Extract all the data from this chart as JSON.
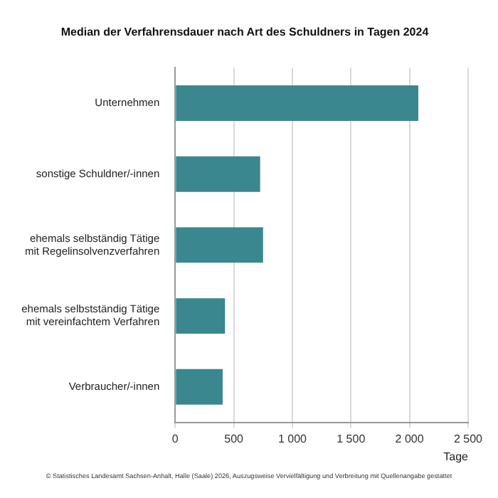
{
  "chart_data": {
    "type": "bar",
    "orientation": "horizontal",
    "title": "Median der Verfahrensdauer nach Art des Schuldners in Tagen 2024",
    "xlabel": "Tage",
    "categories": [
      "Unternehmen",
      "sonstige Schuldner/-innen",
      "ehemals selbständig Tätige mit Regelinsolvenzverfahren",
      "ehemals selbstständig Tätige mit vereinfachtem Verfahren",
      "Verbraucher/-innen"
    ],
    "values": [
      2075,
      725,
      750,
      425,
      405
    ],
    "color": "#3a878f",
    "xlim": [
      0,
      2500
    ],
    "xticks": [
      0,
      500,
      {
        "value": 1000,
        "label": "1 000"
      },
      {
        "value": 1500,
        "label": "1 500"
      },
      {
        "value": 2000,
        "label": "2 000"
      },
      {
        "value": 2500,
        "label": "2 500"
      }
    ],
    "grid": "x",
    "legend": false,
    "annotations": [
      "© Statistisches Landesamt Sachsen-Anhalt, Halle (Saale) 2026, Auszugsweise Vervielfältigung und Verbreitung mit Quellenangabe gestattet"
    ]
  }
}
